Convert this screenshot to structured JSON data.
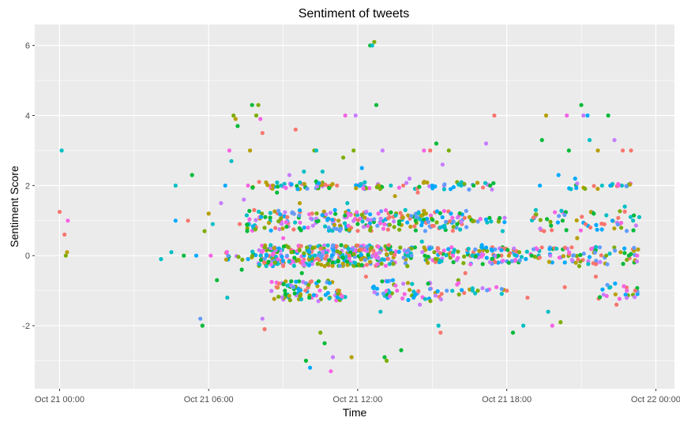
{
  "chart_data": {
    "type": "scatter",
    "title": "Sentiment of tweets",
    "xlabel": "Time",
    "ylabel": "Sentiment Score",
    "x_axis": "datetime",
    "xlim": [
      "2023-10-20 23:00",
      "2023-10-22 00:45"
    ],
    "ylim": [
      -3.8,
      6.6
    ],
    "x_ticks": [
      {
        "value": "2023-10-21 00:00",
        "label": "Oct 21 00:00"
      },
      {
        "value": "2023-10-21 06:00",
        "label": "Oct 21 06:00"
      },
      {
        "value": "2023-10-21 12:00",
        "label": "Oct 21 12:00"
      },
      {
        "value": "2023-10-21 18:00",
        "label": "Oct 21 18:00"
      },
      {
        "value": "2023-10-22 00:00",
        "label": "Oct 22 00:00"
      }
    ],
    "y_ticks": [
      -2,
      0,
      2,
      4,
      6
    ],
    "grid": true,
    "legend": "none",
    "panel_background": "#ebebeb",
    "grid_color": "#ffffff",
    "palette": [
      "#f8766d",
      "#7cae00",
      "#00bfc4",
      "#c77cff",
      "#00ba38",
      "#619cff",
      "#b79f00",
      "#f564e3",
      "#00a9ff"
    ],
    "points": [
      [
        "2023-10-21 00:00",
        1.25,
        0
      ],
      [
        "2023-10-21 00:05",
        3.0,
        2
      ],
      [
        "2023-10-21 00:12",
        0.6,
        0
      ],
      [
        "2023-10-21 00:15",
        0.0,
        1
      ],
      [
        "2023-10-21 00:18",
        0.1,
        6
      ],
      [
        "2023-10-21 00:20",
        1.0,
        7
      ],
      [
        "2023-10-21 04:05",
        -0.1,
        2
      ],
      [
        "2023-10-21 04:30",
        0.1,
        2
      ],
      [
        "2023-10-21 04:40",
        2.0,
        2
      ],
      [
        "2023-10-21 04:40",
        1.0,
        8
      ],
      [
        "2023-10-21 05:00",
        0.0,
        4
      ],
      [
        "2023-10-21 05:10",
        1.0,
        0
      ],
      [
        "2023-10-21 05:20",
        2.3,
        4
      ],
      [
        "2023-10-21 05:30",
        0.0,
        8
      ],
      [
        "2023-10-21 05:40",
        -1.8,
        5
      ],
      [
        "2023-10-21 05:45",
        -2.0,
        4
      ],
      [
        "2023-10-21 05:50",
        0.7,
        1
      ],
      [
        "2023-10-21 06:00",
        1.2,
        6
      ],
      [
        "2023-10-21 06:05",
        0.0,
        7
      ],
      [
        "2023-10-21 06:10",
        0.9,
        2
      ],
      [
        "2023-10-21 06:20",
        -0.7,
        4
      ],
      [
        "2023-10-21 06:30",
        1.5,
        3
      ],
      [
        "2023-10-21 06:40",
        2.0,
        8
      ],
      [
        "2023-10-21 06:45",
        -1.2,
        2
      ],
      [
        "2023-10-21 06:50",
        3.0,
        7
      ],
      [
        "2023-10-21 06:55",
        2.7,
        2
      ],
      [
        "2023-10-21 07:00",
        4.0,
        1
      ],
      [
        "2023-10-21 07:05",
        3.9,
        6
      ],
      [
        "2023-10-21 07:10",
        3.7,
        4
      ],
      [
        "2023-10-21 07:15",
        0.9,
        0
      ],
      [
        "2023-10-21 07:20",
        -0.4,
        4
      ],
      [
        "2023-10-21 07:25",
        1.6,
        3
      ],
      [
        "2023-10-21 07:35",
        2.0,
        7
      ],
      [
        "2023-10-21 07:40",
        3.0,
        6
      ],
      [
        "2023-10-21 07:45",
        4.3,
        4
      ],
      [
        "2023-10-21 07:50",
        1.3,
        0
      ],
      [
        "2023-10-21 07:55",
        4.0,
        1
      ],
      [
        "2023-10-21 08:00",
        4.3,
        1
      ],
      [
        "2023-10-21 08:05",
        3.9,
        7
      ],
      [
        "2023-10-21 08:10",
        3.5,
        0
      ],
      [
        "2023-10-21 08:10",
        -1.8,
        3
      ],
      [
        "2023-10-21 08:15",
        -2.1,
        0
      ],
      [
        "2023-10-21 08:20",
        0.0,
        8
      ],
      [
        "2023-10-21 08:30",
        0.3,
        2
      ],
      [
        "2023-10-21 08:35",
        2.0,
        6
      ],
      [
        "2023-10-21 08:40",
        -0.2,
        1
      ],
      [
        "2023-10-21 08:45",
        1.8,
        4
      ],
      [
        "2023-10-21 08:50",
        -0.8,
        0
      ],
      [
        "2023-10-21 08:55",
        2.0,
        2
      ],
      [
        "2023-10-21 09:00",
        0.5,
        7
      ],
      [
        "2023-10-21 09:05",
        -1.1,
        4
      ],
      [
        "2023-10-21 09:10",
        1.1,
        0
      ],
      [
        "2023-10-21 09:15",
        2.3,
        3
      ],
      [
        "2023-10-21 09:20",
        0.1,
        1
      ],
      [
        "2023-10-21 09:25",
        -0.9,
        5
      ],
      [
        "2023-10-21 09:30",
        3.6,
        0
      ],
      [
        "2023-10-21 09:35",
        1.9,
        8
      ],
      [
        "2023-10-21 09:40",
        1.5,
        6
      ],
      [
        "2023-10-21 09:45",
        -0.5,
        4
      ],
      [
        "2023-10-21 09:50",
        2.4,
        2
      ],
      [
        "2023-10-21 09:55",
        -3.0,
        4
      ],
      [
        "2023-10-21 10:00",
        0.8,
        7
      ],
      [
        "2023-10-21 10:05",
        -3.2,
        8
      ],
      [
        "2023-10-21 10:10",
        1.2,
        0
      ],
      [
        "2023-10-21 10:15",
        3.0,
        1
      ],
      [
        "2023-10-21 10:20",
        3.0,
        2
      ],
      [
        "2023-10-21 10:25",
        -1.3,
        3
      ],
      [
        "2023-10-21 10:30",
        -2.2,
        1
      ],
      [
        "2023-10-21 10:35",
        2.4,
        2
      ],
      [
        "2023-10-21 10:40",
        -2.5,
        4
      ],
      [
        "2023-10-21 10:45",
        0.0,
        0
      ],
      [
        "2023-10-21 10:50",
        0.8,
        5
      ],
      [
        "2023-10-21 10:55",
        -3.3,
        7
      ],
      [
        "2023-10-21 11:00",
        -2.9,
        3
      ],
      [
        "2023-10-21 11:05",
        1.3,
        8
      ],
      [
        "2023-10-21 11:10",
        2.0,
        0
      ],
      [
        "2023-10-21 11:15",
        -1.0,
        6
      ],
      [
        "2023-10-21 11:20",
        0.3,
        4
      ],
      [
        "2023-10-21 11:25",
        2.8,
        1
      ],
      [
        "2023-10-21 11:30",
        4.0,
        7
      ],
      [
        "2023-10-21 11:35",
        1.5,
        2
      ],
      [
        "2023-10-21 11:40",
        0.0,
        0
      ],
      [
        "2023-10-21 11:45",
        -2.9,
        6
      ],
      [
        "2023-10-21 11:50",
        3.0,
        1
      ],
      [
        "2023-10-21 11:55",
        4.0,
        3
      ],
      [
        "2023-10-21 12:00",
        0.9,
        4
      ],
      [
        "2023-10-21 12:10",
        2.5,
        8
      ],
      [
        "2023-10-21 12:20",
        -0.6,
        0
      ],
      [
        "2023-10-21 12:30",
        6.0,
        4
      ],
      [
        "2023-10-21 12:35",
        6.0,
        2
      ],
      [
        "2023-10-21 12:40",
        6.1,
        1
      ],
      [
        "2023-10-21 12:45",
        4.3,
        4
      ],
      [
        "2023-10-21 12:50",
        1.2,
        7
      ],
      [
        "2023-10-21 12:55",
        -1.6,
        2
      ],
      [
        "2023-10-21 13:00",
        3.0,
        3
      ],
      [
        "2023-10-21 13:05",
        -2.9,
        4
      ],
      [
        "2023-10-21 13:10",
        -3.0,
        1
      ],
      [
        "2023-10-21 13:15",
        0.3,
        0
      ],
      [
        "2023-10-21 13:20",
        2.0,
        2
      ],
      [
        "2023-10-21 13:25",
        -0.7,
        8
      ],
      [
        "2023-10-21 13:30",
        1.7,
        6
      ],
      [
        "2023-10-21 13:35",
        -1.0,
        7
      ],
      [
        "2023-10-21 13:40",
        0.9,
        4
      ],
      [
        "2023-10-21 13:45",
        -2.7,
        4
      ],
      [
        "2023-10-21 13:50",
        2.0,
        0
      ],
      [
        "2023-10-21 13:55",
        1.3,
        2
      ],
      [
        "2023-10-21 14:00",
        -0.3,
        1
      ],
      [
        "2023-10-21 14:05",
        2.2,
        3
      ],
      [
        "2023-10-21 14:10",
        0.0,
        5
      ],
      [
        "2023-10-21 14:15",
        -1.2,
        8
      ],
      [
        "2023-10-21 14:20",
        1.0,
        4
      ],
      [
        "2023-10-21 14:25",
        1.8,
        0
      ],
      [
        "2023-10-21 14:30",
        -1.4,
        3
      ],
      [
        "2023-10-21 14:35",
        0.4,
        2
      ],
      [
        "2023-10-21 14:40",
        3.0,
        7
      ],
      [
        "2023-10-21 14:45",
        1.2,
        6
      ],
      [
        "2023-10-21 14:50",
        -0.8,
        4
      ],
      [
        "2023-10-21 14:55",
        3.0,
        0
      ],
      [
        "2023-10-21 15:00",
        2.0,
        8
      ],
      [
        "2023-10-21 15:05",
        0.1,
        1
      ],
      [
        "2023-10-21 15:10",
        3.2,
        4
      ],
      [
        "2023-10-21 15:15",
        -2.0,
        2
      ],
      [
        "2023-10-21 15:20",
        -2.2,
        0
      ],
      [
        "2023-10-21 15:25",
        2.6,
        3
      ],
      [
        "2023-10-21 15:30",
        0.8,
        2
      ],
      [
        "2023-10-21 15:35",
        -1.0,
        5
      ],
      [
        "2023-10-21 15:40",
        3.0,
        1
      ],
      [
        "2023-10-21 15:45",
        1.2,
        8
      ],
      [
        "2023-10-21 15:50",
        0.0,
        7
      ],
      [
        "2023-10-21 16:00",
        0.9,
        4
      ],
      [
        "2023-10-21 16:10",
        2.0,
        2
      ],
      [
        "2023-10-21 16:20",
        -0.5,
        0
      ],
      [
        "2023-10-21 16:30",
        1.1,
        6
      ],
      [
        "2023-10-21 16:40",
        2.0,
        4
      ],
      [
        "2023-10-21 16:50",
        -1.0,
        1
      ],
      [
        "2023-10-21 17:00",
        0.3,
        8
      ],
      [
        "2023-10-21 17:10",
        3.2,
        3
      ],
      [
        "2023-10-21 17:20",
        2.0,
        4
      ],
      [
        "2023-10-21 17:30",
        4.0,
        0
      ],
      [
        "2023-10-21 17:35",
        -0.9,
        7
      ],
      [
        "2023-10-21 17:40",
        0.0,
        4
      ],
      [
        "2023-10-21 17:50",
        0.7,
        2
      ],
      [
        "2023-10-21 18:00",
        -1.0,
        0
      ],
      [
        "2023-10-21 18:05",
        0.0,
        6
      ],
      [
        "2023-10-21 18:15",
        -2.2,
        4
      ],
      [
        "2023-10-21 18:30",
        0.1,
        1
      ],
      [
        "2023-10-21 18:40",
        -2.0,
        2
      ],
      [
        "2023-10-21 18:50",
        -1.2,
        0
      ],
      [
        "2023-10-21 19:00",
        0.0,
        4
      ],
      [
        "2023-10-21 19:10",
        1.3,
        2
      ],
      [
        "2023-10-21 19:20",
        2.0,
        8
      ],
      [
        "2023-10-21 19:25",
        3.3,
        4
      ],
      [
        "2023-10-21 19:30",
        0.7,
        0
      ],
      [
        "2023-10-21 19:35",
        4.0,
        6
      ],
      [
        "2023-10-21 19:40",
        -1.6,
        2
      ],
      [
        "2023-10-21 19:45",
        0.0,
        3
      ],
      [
        "2023-10-21 19:50",
        -2.0,
        7
      ],
      [
        "2023-10-21 20:00",
        0.2,
        2
      ],
      [
        "2023-10-21 20:05",
        2.3,
        8
      ],
      [
        "2023-10-21 20:10",
        -1.9,
        1
      ],
      [
        "2023-10-21 20:15",
        1.0,
        4
      ],
      [
        "2023-10-21 20:20",
        -0.9,
        0
      ],
      [
        "2023-10-21 20:25",
        4.0,
        7
      ],
      [
        "2023-10-21 20:30",
        3.0,
        4
      ],
      [
        "2023-10-21 20:35",
        1.9,
        2
      ],
      [
        "2023-10-21 20:40",
        0.0,
        5
      ],
      [
        "2023-10-21 20:45",
        2.2,
        8
      ],
      [
        "2023-10-21 20:50",
        0.5,
        6
      ],
      [
        "2023-10-21 20:55",
        -0.3,
        1
      ],
      [
        "2023-10-21 21:00",
        4.3,
        4
      ],
      [
        "2023-10-21 21:05",
        4.0,
        3
      ],
      [
        "2023-10-21 21:10",
        0.9,
        0
      ],
      [
        "2023-10-21 21:15",
        4.0,
        8
      ],
      [
        "2023-10-21 21:20",
        3.3,
        2
      ],
      [
        "2023-10-21 21:25",
        0.2,
        7
      ],
      [
        "2023-10-21 21:30",
        1.2,
        4
      ],
      [
        "2023-10-21 21:35",
        -0.6,
        0
      ],
      [
        "2023-10-21 21:40",
        3.0,
        6
      ],
      [
        "2023-10-21 21:50",
        2.0,
        2
      ],
      [
        "2023-10-21 22:00",
        0.0,
        1
      ],
      [
        "2023-10-21 22:05",
        4.0,
        4
      ],
      [
        "2023-10-21 22:10",
        -0.9,
        2
      ],
      [
        "2023-10-21 22:15",
        1.0,
        8
      ],
      [
        "2023-10-21 22:20",
        3.3,
        3
      ],
      [
        "2023-10-21 22:25",
        -1.4,
        0
      ],
      [
        "2023-10-21 22:30",
        2.0,
        7
      ],
      [
        "2023-10-21 22:35",
        0.1,
        6
      ],
      [
        "2023-10-21 22:40",
        3.0,
        0
      ],
      [
        "2023-10-21 22:45",
        1.4,
        2
      ],
      [
        "2023-10-21 22:50",
        -1.0,
        7
      ],
      [
        "2023-10-21 22:55",
        0.0,
        4
      ],
      [
        "2023-10-21 23:00",
        3.0,
        0
      ],
      [
        "2023-10-21 23:05",
        1.0,
        2
      ],
      [
        "2023-10-21 23:10",
        -1.0,
        0
      ],
      [
        "2023-10-21 23:15",
        0.0,
        7
      ],
      [
        "2023-10-21 23:20",
        1.1,
        2
      ]
    ],
    "point_bands": [
      {
        "y": 2.0,
        "from": "2023-10-21 07:45",
        "to": "2023-10-21 11:00",
        "count": 45,
        "spread": 0.12
      },
      {
        "y": 2.0,
        "from": "2023-10-21 11:45",
        "to": "2023-10-21 13:15",
        "count": 20,
        "spread": 0.1
      },
      {
        "y": 2.0,
        "from": "2023-10-21 13:30",
        "to": "2023-10-21 17:30",
        "count": 30,
        "spread": 0.12
      },
      {
        "y": 2.0,
        "from": "2023-10-21 20:30",
        "to": "2023-10-21 23:00",
        "count": 20,
        "spread": 0.1
      },
      {
        "y": 1.0,
        "from": "2023-10-21 07:30",
        "to": "2023-10-21 12:00",
        "count": 120,
        "spread": 0.3
      },
      {
        "y": 1.0,
        "from": "2023-10-21 12:00",
        "to": "2023-10-21 16:30",
        "count": 120,
        "spread": 0.3
      },
      {
        "y": 1.0,
        "from": "2023-10-21 16:30",
        "to": "2023-10-21 18:00",
        "count": 15,
        "spread": 0.1
      },
      {
        "y": 1.0,
        "from": "2023-10-21 19:00",
        "to": "2023-10-21 23:20",
        "count": 50,
        "spread": 0.3
      },
      {
        "y": 0.0,
        "from": "2023-10-21 06:30",
        "to": "2023-10-21 08:00",
        "count": 15,
        "spread": 0.12
      },
      {
        "y": 0.0,
        "from": "2023-10-21 08:00",
        "to": "2023-10-21 13:30",
        "count": 320,
        "spread": 0.3
      },
      {
        "y": 0.0,
        "from": "2023-10-21 13:30",
        "to": "2023-10-21 18:30",
        "count": 130,
        "spread": 0.25
      },
      {
        "y": 0.0,
        "from": "2023-10-21 18:30",
        "to": "2023-10-21 23:20",
        "count": 80,
        "spread": 0.25
      },
      {
        "y": -1.0,
        "from": "2023-10-21 08:30",
        "to": "2023-10-21 10:00",
        "count": 45,
        "spread": 0.3
      },
      {
        "y": -1.0,
        "from": "2023-10-21 10:00",
        "to": "2023-10-21 11:30",
        "count": 35,
        "spread": 0.3
      },
      {
        "y": -1.0,
        "from": "2023-10-21 12:30",
        "to": "2023-10-21 16:30",
        "count": 55,
        "spread": 0.3
      },
      {
        "y": -1.0,
        "from": "2023-10-21 16:30",
        "to": "2023-10-21 18:00",
        "count": 10,
        "spread": 0.1
      },
      {
        "y": -1.0,
        "from": "2023-10-21 21:30",
        "to": "2023-10-21 23:20",
        "count": 20,
        "spread": 0.25
      }
    ]
  }
}
